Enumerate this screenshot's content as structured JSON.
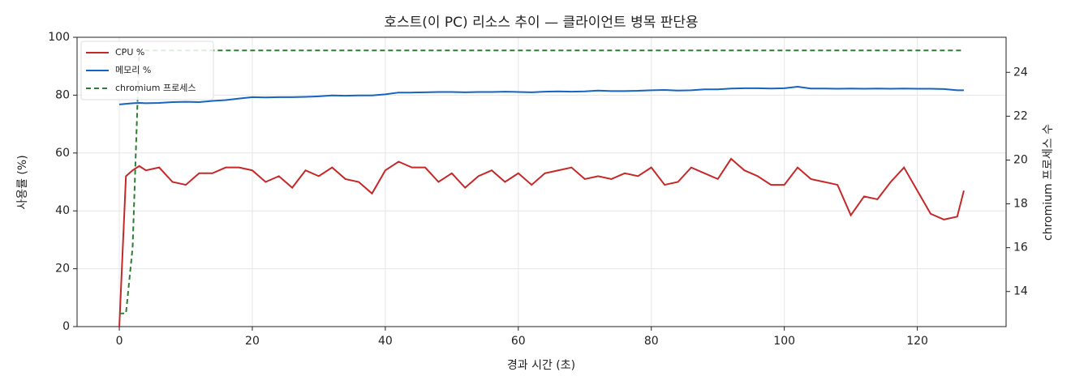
{
  "chart_data": {
    "type": "line",
    "title": "호스트(이 PC) 리소스 추이 — 클라이언트 병목 판단용",
    "xlabel": "경과 시간 (초)",
    "ylabel": "사용률 (%)",
    "y2label": "chromium 프로세스 수",
    "x": [
      0,
      1,
      2,
      3,
      4,
      6,
      8,
      10,
      12,
      14,
      16,
      18,
      20,
      22,
      24,
      26,
      28,
      30,
      32,
      34,
      36,
      38,
      40,
      42,
      44,
      46,
      48,
      50,
      52,
      54,
      56,
      58,
      60,
      62,
      64,
      66,
      68,
      70,
      72,
      74,
      76,
      78,
      80,
      82,
      84,
      86,
      88,
      90,
      92,
      94,
      96,
      98,
      100,
      102,
      104,
      106,
      108,
      110,
      112,
      114,
      116,
      118,
      120,
      122,
      124,
      126,
      127
    ],
    "series": [
      {
        "name": "CPU %",
        "color": "#c62828",
        "dash": false,
        "values": [
          0,
          52,
          54,
          55.5,
          54,
          55,
          50,
          49,
          53,
          53,
          55,
          55,
          54,
          50,
          52,
          48,
          54,
          52,
          55,
          51,
          50,
          46,
          54,
          57,
          55,
          55,
          50,
          53,
          48,
          52,
          54,
          50,
          53,
          49,
          53,
          54,
          55,
          51,
          52,
          51,
          53,
          52,
          55,
          49,
          50,
          55,
          53,
          51,
          58,
          54,
          52,
          49,
          49,
          55,
          51,
          50,
          49,
          38.5,
          45,
          44,
          50,
          55,
          47,
          39,
          37,
          38,
          47
        ]
      },
      {
        "name": "메모리 %",
        "color": "#1565c0",
        "dash": false,
        "values": [
          76.8,
          77,
          77.2,
          77.3,
          77.2,
          77.3,
          77.6,
          77.7,
          77.6,
          78,
          78.3,
          78.8,
          79.3,
          79.2,
          79.3,
          79.3,
          79.4,
          79.6,
          79.9,
          79.8,
          79.9,
          79.9,
          80.3,
          80.9,
          80.9,
          81,
          81.1,
          81.1,
          81,
          81.1,
          81.1,
          81.2,
          81.1,
          81,
          81.2,
          81.3,
          81.2,
          81.3,
          81.6,
          81.4,
          81.4,
          81.5,
          81.7,
          81.8,
          81.6,
          81.7,
          82,
          82,
          82.3,
          82.4,
          82.4,
          82.3,
          82.4,
          82.9,
          82.3,
          82.3,
          82.2,
          82.3,
          82.2,
          82.3,
          82.2,
          82.3,
          82.2,
          82.2,
          82.1,
          81.7,
          81.7
        ]
      },
      {
        "name": "chromium 프로세스",
        "color": "#2e7d32",
        "dash": true,
        "axis": "y2",
        "values": [
          13,
          13,
          16,
          25,
          25,
          25,
          25,
          25,
          25,
          25,
          25,
          25,
          25,
          25,
          25,
          25,
          25,
          25,
          25,
          25,
          25,
          25,
          25,
          25,
          25,
          25,
          25,
          25,
          25,
          25,
          25,
          25,
          25,
          25,
          25,
          25,
          25,
          25,
          25,
          25,
          25,
          25,
          25,
          25,
          25,
          25,
          25,
          25,
          25,
          25,
          25,
          25,
          25,
          25,
          25,
          25,
          25,
          25,
          25,
          25,
          25,
          25,
          25,
          25,
          25,
          25,
          25
        ]
      }
    ],
    "xlim": [
      -6.35,
      133.35
    ],
    "xticks": [
      0,
      20,
      40,
      60,
      80,
      100,
      120
    ],
    "ylim": [
      0,
      100
    ],
    "yticks": [
      0,
      20,
      40,
      60,
      80,
      100
    ],
    "y2lim": [
      12.4,
      25.6
    ],
    "y2ticks": [
      14,
      16,
      18,
      20,
      22,
      24
    ],
    "grid": true,
    "legend": "upper-left"
  }
}
